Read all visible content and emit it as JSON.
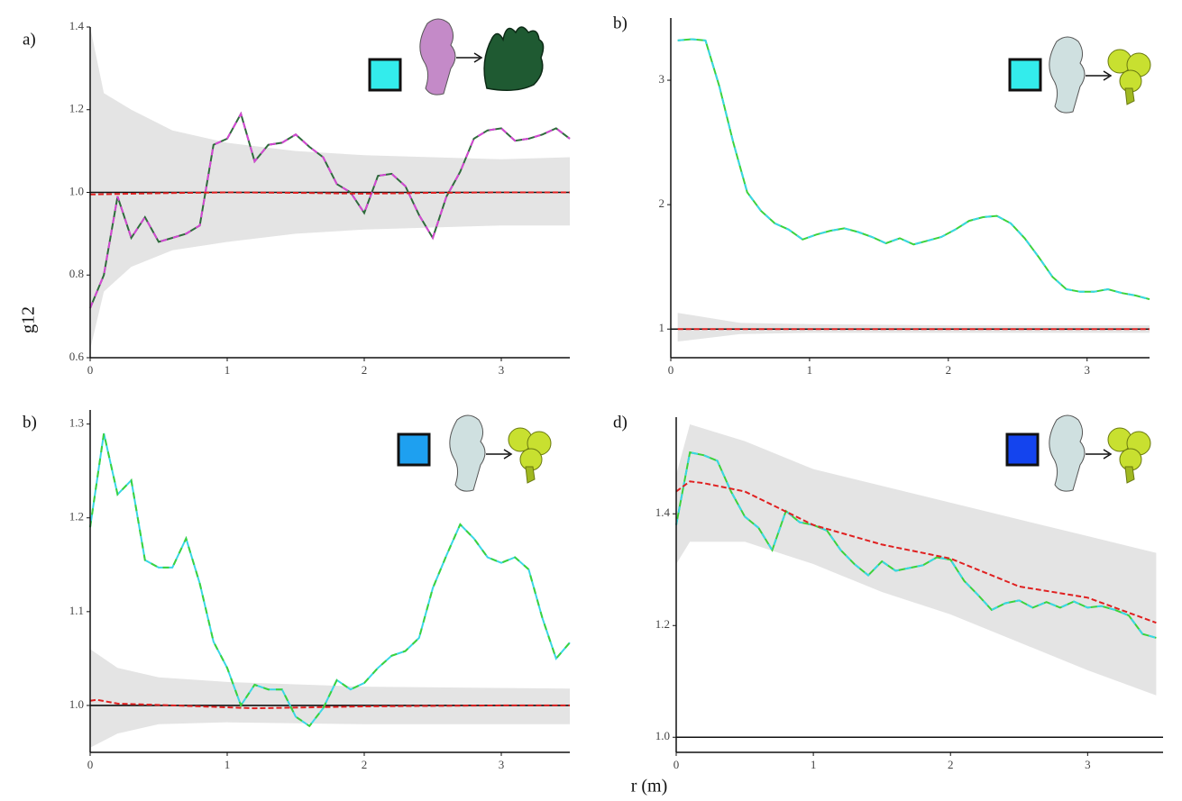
{
  "ylabel": "g12",
  "xlabel": "r (m)",
  "chart_data": [
    {
      "type": "line",
      "label": "a)",
      "legend_color": "#33ecec",
      "xlim": [
        0,
        3.5
      ],
      "ylim": [
        0.6,
        1.4
      ],
      "xticks": [
        0,
        1,
        2,
        3
      ],
      "yticks": [
        0.6,
        0.8,
        {
          "value": 1,
          "label": "1.0"
        },
        1.2,
        1.4
      ],
      "hline": 1,
      "envelope": {
        "color": "#e4e4e4",
        "x": [
          0,
          0.1,
          0.3,
          0.6,
          1,
          1.5,
          2,
          3,
          3.5
        ],
        "lower": [
          0.62,
          0.76,
          0.82,
          0.86,
          0.88,
          0.9,
          0.91,
          0.92,
          0.92
        ],
        "upper": [
          1.4,
          1.24,
          1.2,
          1.15,
          1.12,
          1.1,
          1.09,
          1.08,
          1.085
        ]
      },
      "series": [
        {
          "color": "#2f6b3c",
          "dash_color": "#d447d4",
          "x": [
            0,
            0.1,
            0.2,
            0.3,
            0.4,
            0.5,
            0.6,
            0.7,
            0.8,
            0.9,
            1,
            1.1,
            1.2,
            1.3,
            1.4,
            1.5,
            1.6,
            1.7,
            1.8,
            1.9,
            2,
            2.1,
            2.2,
            2.3,
            2.4,
            2.5,
            2.6,
            2.7,
            2.8,
            2.9,
            3,
            3.1,
            3.2,
            3.3,
            3.4,
            3.5
          ],
          "values": [
            0.72,
            0.8,
            0.99,
            0.89,
            0.94,
            0.88,
            0.89,
            0.9,
            0.92,
            1.115,
            1.13,
            1.19,
            1.075,
            1.115,
            1.12,
            1.14,
            1.11,
            1.085,
            1.02,
            1.0,
            0.95,
            1.04,
            1.045,
            1.015,
            0.945,
            0.89,
            0.99,
            1.05,
            1.13,
            1.15,
            1.155,
            1.125,
            1.13,
            1.14,
            1.155,
            1.13
          ]
        },
        {
          "color": "#e02020",
          "dashed": true,
          "x": [
            0,
            0.5,
            1,
            1.5,
            2,
            2.5,
            3,
            3.5
          ],
          "values": [
            0.995,
            0.998,
            1.0,
            0.999,
            0.997,
            0.999,
            1.0,
            1.0
          ]
        }
      ]
    },
    {
      "type": "line",
      "label": "b)",
      "legend_color": "#33ecec",
      "xlim": [
        0,
        3.45
      ],
      "ylim": [
        0.77,
        3.5
      ],
      "xticks": [
        0,
        1,
        2,
        3
      ],
      "yticks": [
        1,
        2,
        3
      ],
      "hline": 1,
      "envelope": {
        "color": "#e4e4e4",
        "x": [
          0.05,
          0.5,
          1,
          2,
          3.45
        ],
        "lower": [
          0.9,
          0.96,
          0.97,
          0.97,
          0.97
        ],
        "upper": [
          1.13,
          1.05,
          1.04,
          1.03,
          1.03
        ]
      },
      "series": [
        {
          "color": "#3cd23c",
          "dash_color": "#3ad6e6",
          "x": [
            0.05,
            0.15,
            0.25,
            0.35,
            0.45,
            0.55,
            0.65,
            0.75,
            0.85,
            0.95,
            1.05,
            1.15,
            1.25,
            1.35,
            1.45,
            1.55,
            1.65,
            1.75,
            1.85,
            1.95,
            2.05,
            2.15,
            2.25,
            2.35,
            2.45,
            2.55,
            2.65,
            2.75,
            2.85,
            2.95,
            3.05,
            3.15,
            3.25,
            3.35,
            3.45
          ],
          "values": [
            3.32,
            3.33,
            3.32,
            2.95,
            2.5,
            2.1,
            1.95,
            1.85,
            1.8,
            1.72,
            1.76,
            1.79,
            1.81,
            1.78,
            1.74,
            1.69,
            1.73,
            1.68,
            1.71,
            1.74,
            1.8,
            1.87,
            1.9,
            1.91,
            1.85,
            1.73,
            1.58,
            1.42,
            1.32,
            1.3,
            1.3,
            1.32,
            1.29,
            1.27,
            1.24
          ]
        },
        {
          "color": "#e02020",
          "dashed": true,
          "x": [
            0.05,
            1,
            2,
            3,
            3.45
          ],
          "values": [
            1.0,
            1.0,
            1.0,
            1.0,
            1.0
          ]
        }
      ]
    },
    {
      "type": "line",
      "label": "b)",
      "legend_color": "#1ea0f0",
      "xlim": [
        0,
        3.5
      ],
      "ylim": [
        0.95,
        1.315
      ],
      "xticks": [
        0,
        1,
        2,
        3
      ],
      "yticks": [
        {
          "value": 1,
          "label": "1.0"
        },
        1.1,
        1.2,
        1.3
      ],
      "hline": 1,
      "envelope": {
        "color": "#e4e4e4",
        "x": [
          0,
          0.2,
          0.5,
          1,
          2,
          3.5
        ],
        "lower": [
          0.955,
          0.97,
          0.98,
          0.982,
          0.98,
          0.98
        ],
        "upper": [
          1.06,
          1.04,
          1.03,
          1.025,
          1.02,
          1.018
        ]
      },
      "series": [
        {
          "color": "#3ad6e6",
          "dash_color": "#3cd23c",
          "x": [
            0,
            0.1,
            0.2,
            0.3,
            0.4,
            0.5,
            0.6,
            0.7,
            0.8,
            0.9,
            1,
            1.1,
            1.2,
            1.3,
            1.4,
            1.5,
            1.6,
            1.7,
            1.8,
            1.9,
            2,
            2.1,
            2.2,
            2.3,
            2.4,
            2.5,
            2.6,
            2.7,
            2.8,
            2.9,
            3,
            3.1,
            3.2,
            3.3,
            3.4,
            3.5
          ],
          "values": [
            1.19,
            1.29,
            1.225,
            1.24,
            1.155,
            1.147,
            1.147,
            1.178,
            1.13,
            1.068,
            1.04,
            1.0,
            1.022,
            1.017,
            1.017,
            0.988,
            0.978,
            0.997,
            1.027,
            1.017,
            1.024,
            1.04,
            1.053,
            1.058,
            1.072,
            1.125,
            1.16,
            1.193,
            1.178,
            1.158,
            1.152,
            1.158,
            1.145,
            1.093,
            1.05,
            1.067
          ]
        },
        {
          "color": "#e02020",
          "dashed": true,
          "x": [
            0,
            0.05,
            0.2,
            0.6,
            1.2,
            2,
            3,
            3.5
          ],
          "values": [
            1.005,
            1.006,
            1.002,
            1.0,
            0.997,
            0.999,
            1.0,
            1.0
          ]
        }
      ]
    },
    {
      "type": "line",
      "label": "d)",
      "legend_color": "#1444ee",
      "xlim": [
        0,
        3.55
      ],
      "ylim": [
        0.973,
        1.573
      ],
      "xticks": [
        0,
        1,
        2,
        3
      ],
      "yticks": [
        {
          "value": 1,
          "label": "1.0"
        },
        1.2,
        1.4
      ],
      "hline": 1,
      "envelope": {
        "color": "#e4e4e4",
        "x": [
          0,
          0.1,
          0.5,
          1,
          1.5,
          2,
          2.5,
          3,
          3.5
        ],
        "lower": [
          1.31,
          1.35,
          1.35,
          1.31,
          1.26,
          1.22,
          1.17,
          1.12,
          1.075
        ],
        "upper": [
          1.47,
          1.56,
          1.53,
          1.48,
          1.45,
          1.42,
          1.39,
          1.36,
          1.33
        ]
      },
      "series": [
        {
          "color": "#3cd23c",
          "dash_color": "#3ad6e6",
          "x": [
            0,
            0.1,
            0.2,
            0.3,
            0.4,
            0.5,
            0.6,
            0.7,
            0.8,
            0.9,
            1,
            1.1,
            1.2,
            1.3,
            1.4,
            1.5,
            1.6,
            1.7,
            1.8,
            1.9,
            2,
            2.1,
            2.2,
            2.3,
            2.4,
            2.5,
            2.6,
            2.7,
            2.8,
            2.9,
            3,
            3.1,
            3.2,
            3.3,
            3.4,
            3.5
          ],
          "values": [
            1.38,
            1.51,
            1.505,
            1.495,
            1.44,
            1.395,
            1.375,
            1.335,
            1.405,
            1.385,
            1.38,
            1.37,
            1.335,
            1.31,
            1.29,
            1.315,
            1.298,
            1.303,
            1.308,
            1.322,
            1.318,
            1.28,
            1.255,
            1.228,
            1.24,
            1.245,
            1.232,
            1.242,
            1.232,
            1.243,
            1.232,
            1.235,
            1.228,
            1.218,
            1.185,
            1.178
          ]
        },
        {
          "color": "#e02020",
          "dashed": true,
          "x": [
            0,
            0.1,
            0.2,
            0.5,
            1,
            1.5,
            2,
            2.5,
            3,
            3.5
          ],
          "values": [
            1.44,
            1.458,
            1.455,
            1.44,
            1.38,
            1.345,
            1.32,
            1.27,
            1.25,
            1.205
          ]
        }
      ]
    }
  ]
}
